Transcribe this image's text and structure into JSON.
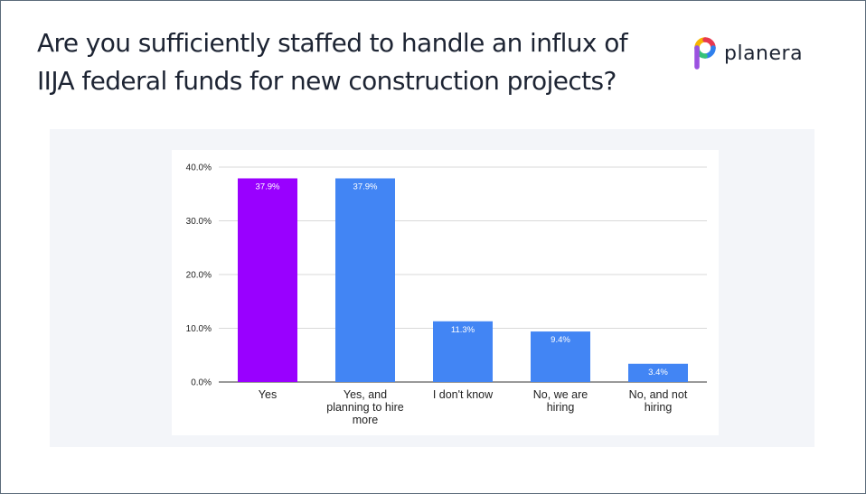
{
  "slide": {
    "title_lines": [
      "Are you sufficiently staffed to handle an influx of",
      "IIJA federal funds for new construction projects?"
    ]
  },
  "logo": {
    "text": "planera",
    "colors": [
      "#f7b500",
      "#e8384f",
      "#2f80ed",
      "#35c27a",
      "#9b51e0"
    ]
  },
  "chart_data": {
    "type": "bar",
    "title": "",
    "xlabel": "",
    "ylabel": "",
    "categories": [
      [
        "Yes"
      ],
      [
        "Yes, and",
        "planning to hire",
        "more"
      ],
      [
        "I don't know"
      ],
      [
        "No, we are",
        "hiring"
      ],
      [
        "No, and not",
        "hiring"
      ]
    ],
    "values": [
      37.9,
      37.9,
      11.3,
      9.4,
      3.4
    ],
    "value_labels": [
      "37.9%",
      "37.9%",
      "11.3%",
      "9.4%",
      "3.4%"
    ],
    "bar_colors": [
      "#9900ff",
      "#4285f4",
      "#4285f4",
      "#4285f4",
      "#4285f4"
    ],
    "yticks": [
      0,
      10,
      20,
      30,
      40
    ],
    "ytick_labels": [
      "0.0%",
      "10.0%",
      "20.0%",
      "30.0%",
      "40.0%"
    ],
    "ylim": [
      0,
      40
    ],
    "grid": true,
    "legend": "none"
  }
}
